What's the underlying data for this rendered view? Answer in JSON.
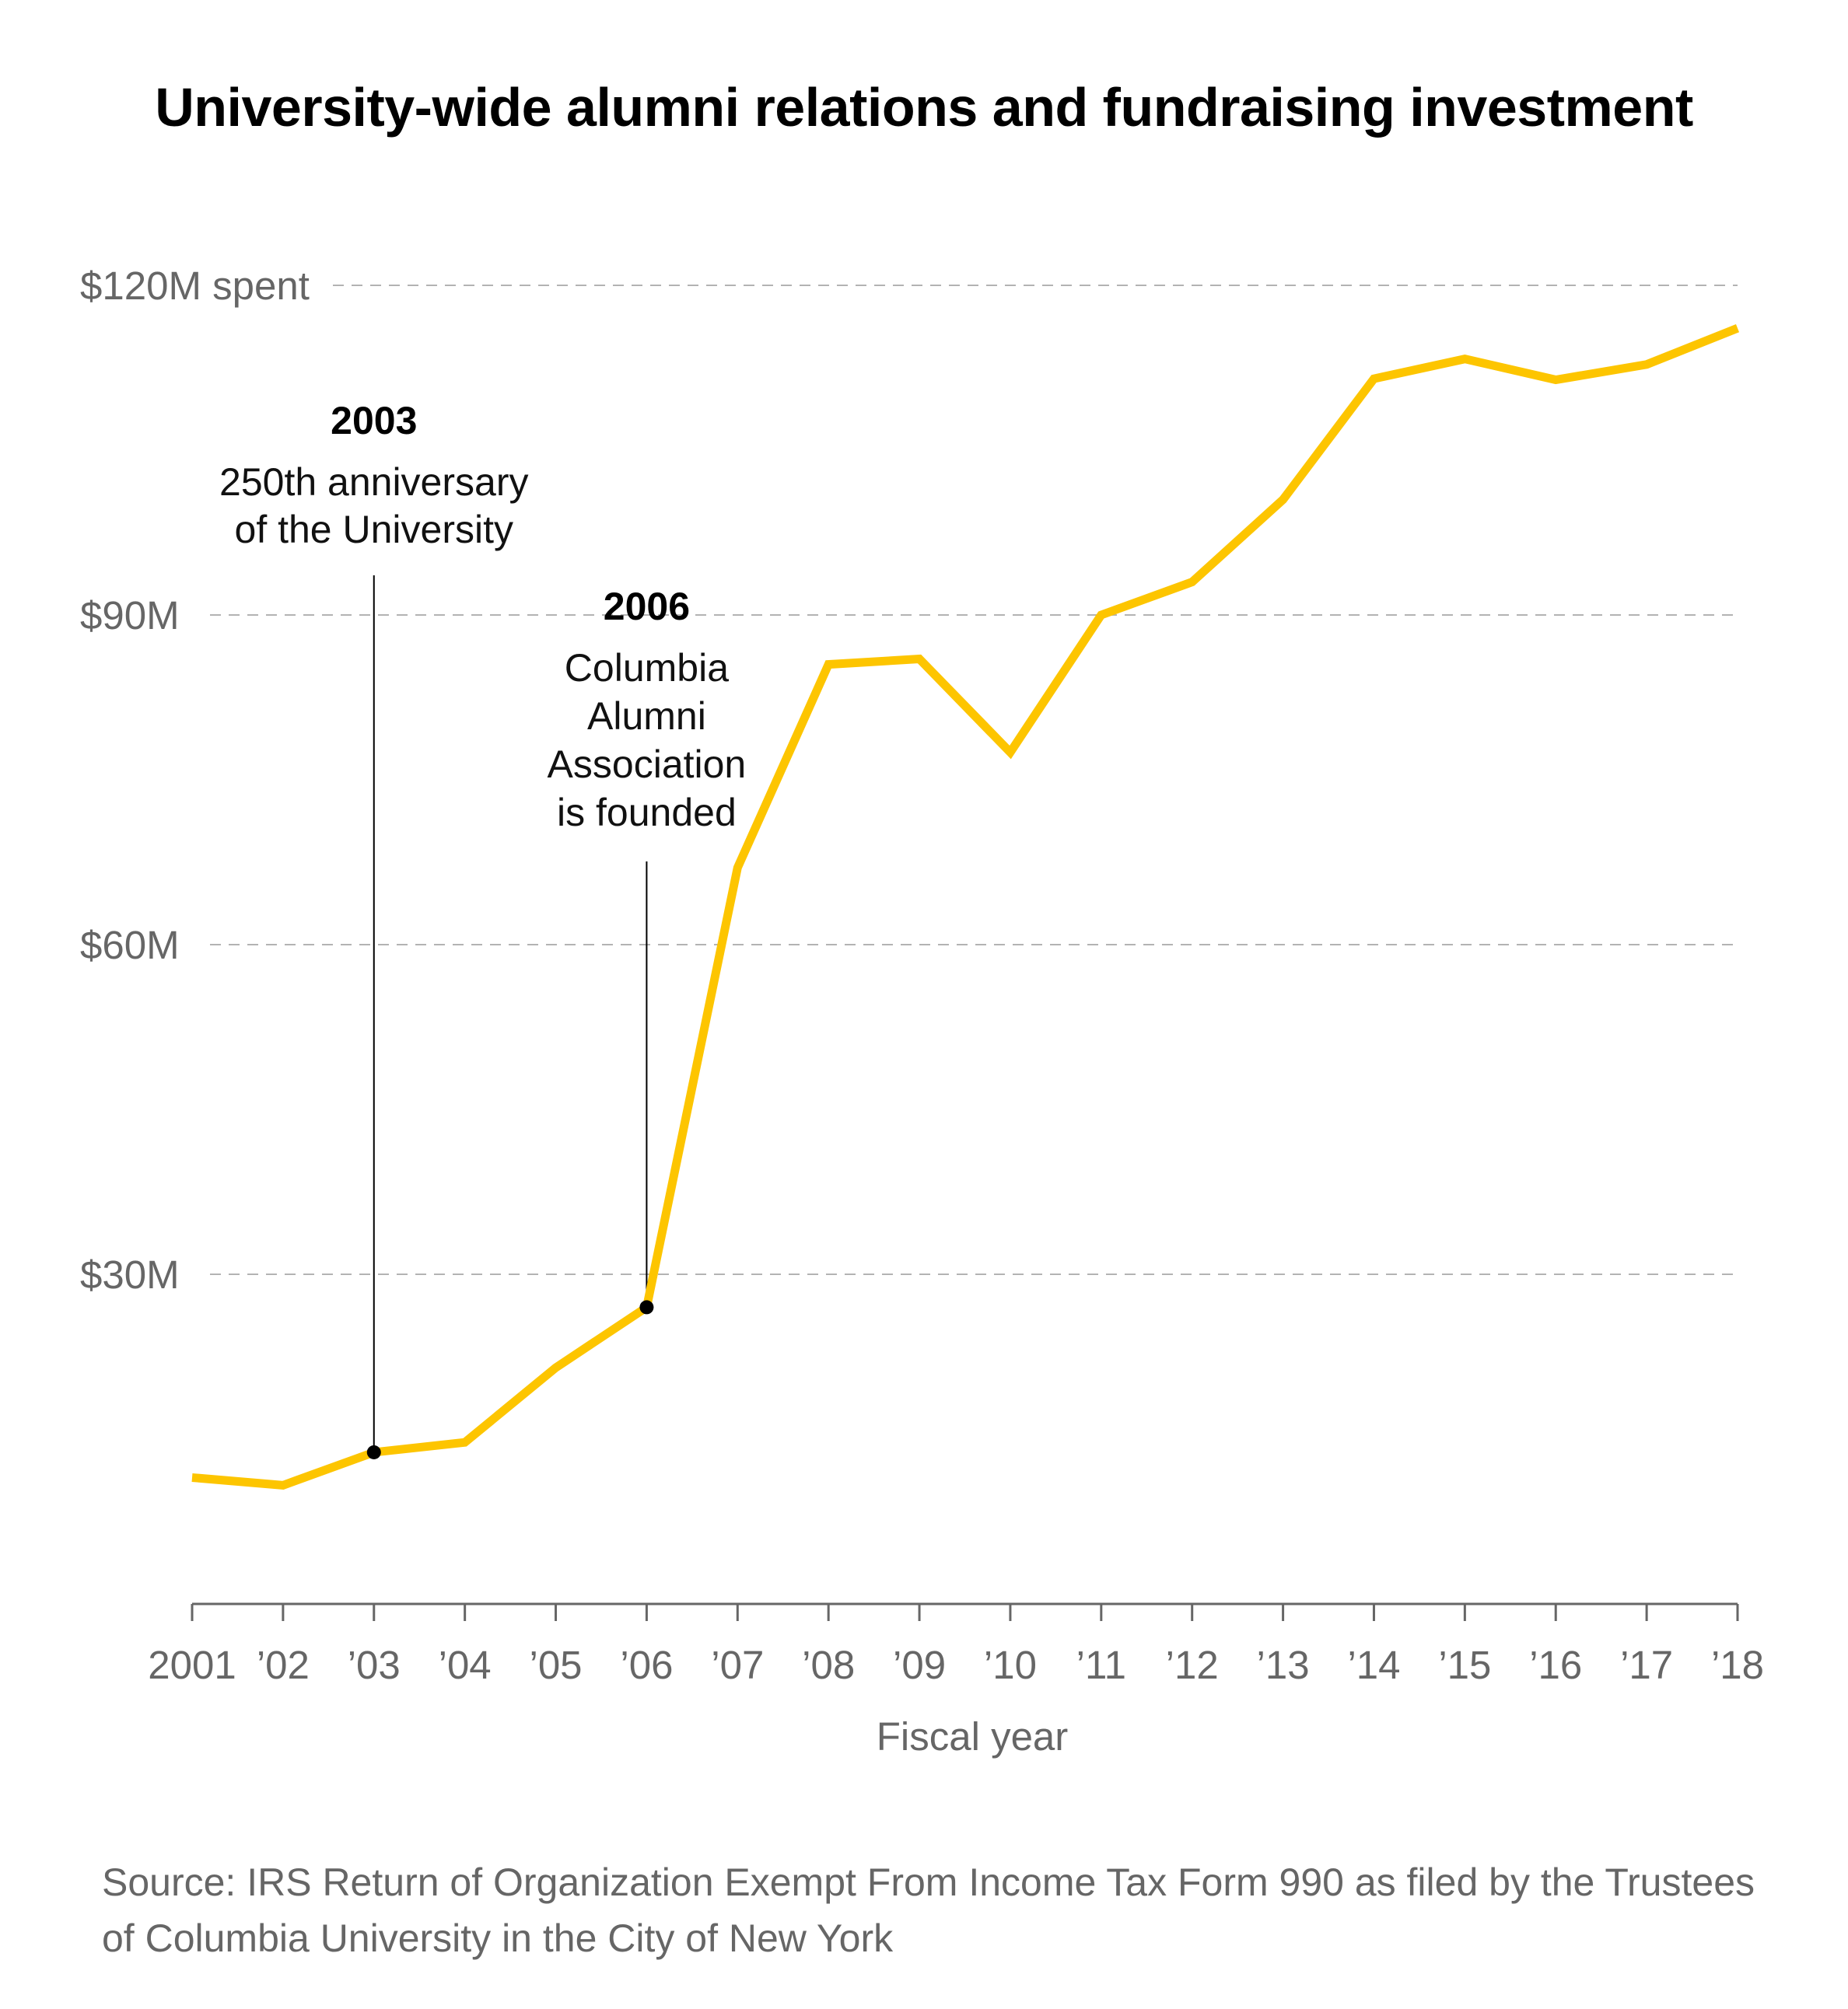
{
  "chart_data": {
    "type": "line",
    "title": "University-wide alumni relations and fundraising investment",
    "xlabel": "Fiscal year",
    "ylabel": "",
    "x": [
      2001,
      2002,
      2003,
      2004,
      2005,
      2006,
      2007,
      2008,
      2009,
      2010,
      2011,
      2012,
      2013,
      2014,
      2015,
      2016,
      2017,
      2018
    ],
    "x_tick_labels": [
      "2001",
      "’02",
      "’03",
      "’04",
      "’05",
      "’06",
      "’07",
      "’08",
      "’09",
      "’10",
      "’11",
      "’12",
      "’13",
      "’14",
      "’15",
      "’16",
      "’17",
      "’18"
    ],
    "series": [
      {
        "values": [
          11.5,
          10.8,
          13.8,
          14.7,
          21.5,
          27.0,
          67.0,
          85.5,
          86.0,
          77.5,
          90.0,
          93.0,
          100.5,
          111.5,
          113.3,
          111.4,
          112.8,
          116.1
        ]
      }
    ],
    "ylim": [
      0,
      120
    ],
    "y_ticks": [
      30,
      60,
      90,
      120
    ],
    "y_tick_labels": [
      "$30M",
      "$60M",
      "$90M",
      "$120M spent"
    ],
    "grid": true,
    "colors": {
      "line": "#fdc500",
      "gridline": "#b3b3b3",
      "axis": "#666666",
      "annotation": "#000000"
    },
    "annotations": [
      {
        "x": 2003,
        "y": 13.8,
        "year": "2003",
        "lines": [
          "250th anniversary",
          "of the University"
        ]
      },
      {
        "x": 2006,
        "y": 27.0,
        "year": "2006",
        "lines": [
          "Columbia",
          "Alumni",
          "Association",
          "is founded"
        ]
      }
    ],
    "source": "Source: IRS Return of Organization Exempt From Income Tax Form 990 as filed by the Trustees of Columbia University in the City of New York"
  }
}
